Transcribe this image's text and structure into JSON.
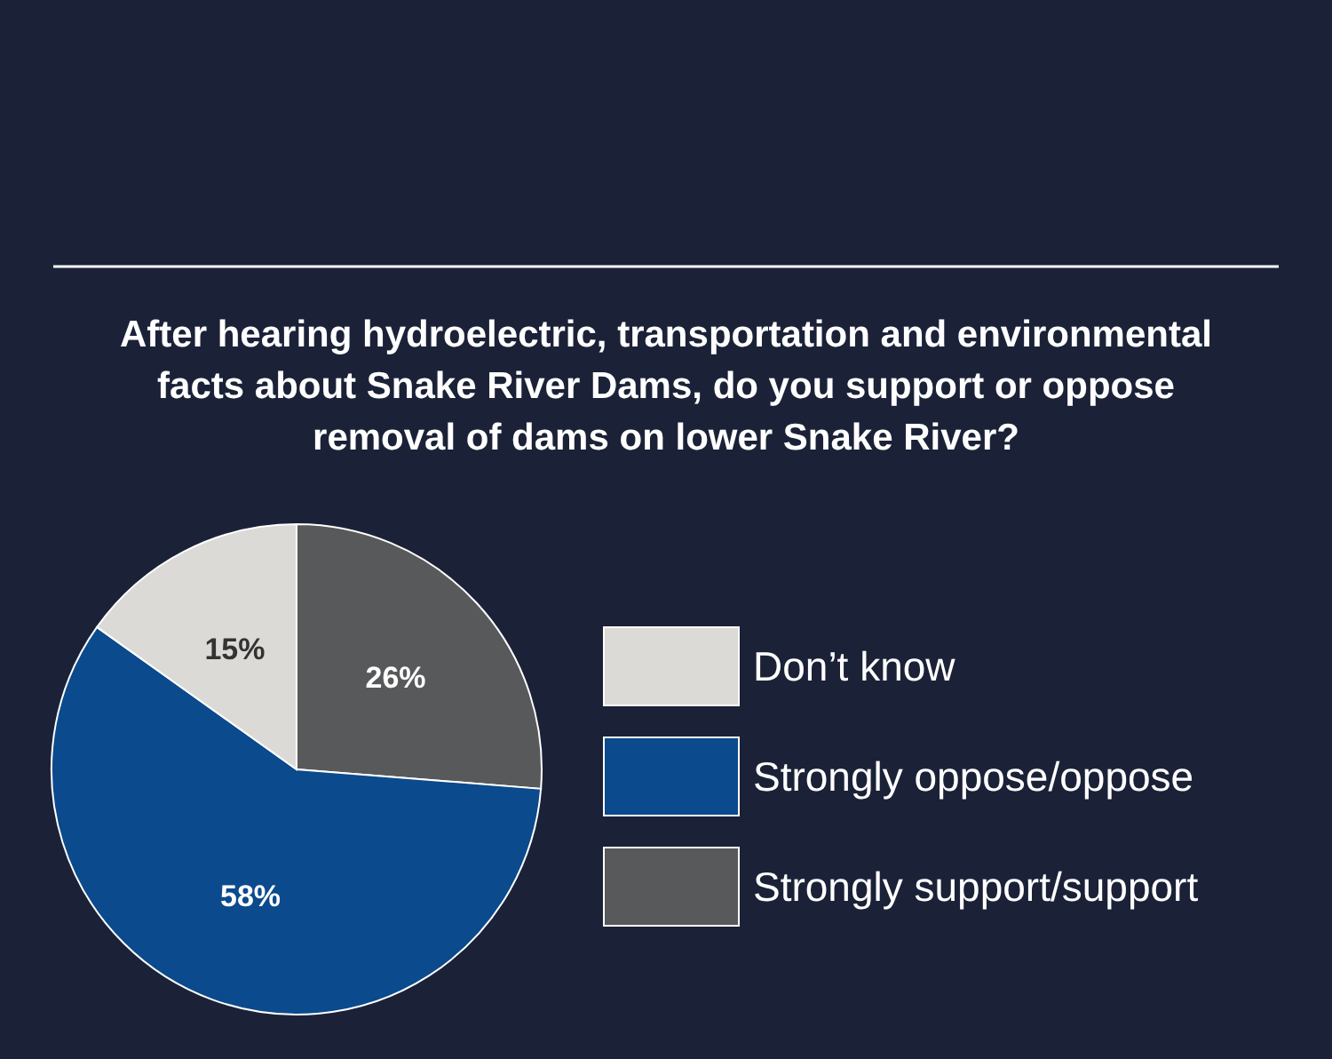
{
  "chart_data": {
    "type": "pie",
    "title": "After hearing hydroelectric, transportation and environmental facts about Snake River Dams, do you support or oppose removal of dams on lower Snake River?",
    "categories": [
      "Strongly support/support",
      "Strongly oppose/oppose",
      "Don’t know"
    ],
    "values": [
      26,
      58,
      15
    ],
    "colors": [
      "#58595b",
      "#0b4a8c",
      "#dcdad6"
    ],
    "value_labels": [
      "26%",
      "58%",
      "15%"
    ],
    "legend": "right"
  }
}
